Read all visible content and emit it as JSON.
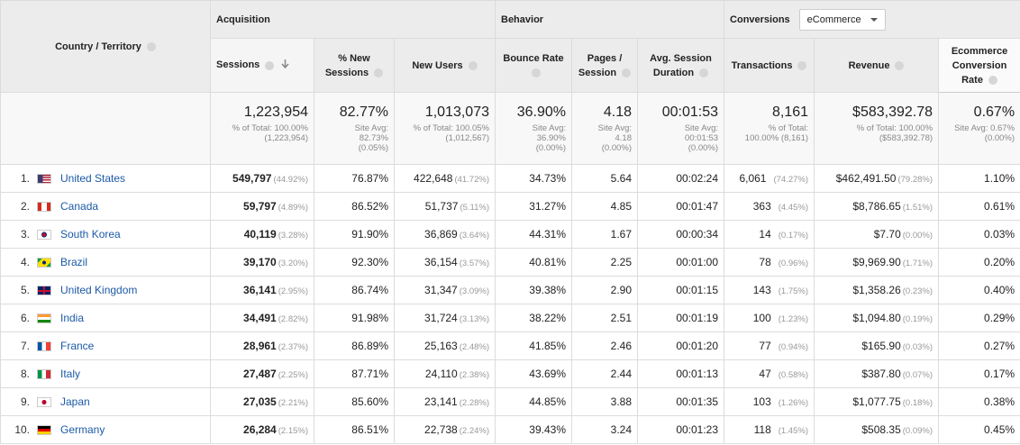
{
  "header": {
    "dimension": "Country / Territory",
    "groups": [
      {
        "label": "Acquisition"
      },
      {
        "label": "Behavior"
      },
      {
        "label": "Conversions",
        "select": "eCommerce"
      }
    ]
  },
  "columns": [
    "Sessions",
    "% New Sessions",
    "New Users",
    "Bounce Rate",
    "Pages / Session",
    "Avg. Session Duration",
    "Transactions",
    "Revenue",
    "Ecommerce Conversion Rate"
  ],
  "totals": [
    {
      "value": "1,223,954",
      "sub": [
        "% of Total: 100.00%",
        "(1,223,954)"
      ]
    },
    {
      "value": "82.77%",
      "sub": [
        "Site Avg:",
        "82.73%",
        "(0.05%)"
      ]
    },
    {
      "value": "1,013,073",
      "sub": [
        "% of Total: 100.05%",
        "(1,012,567)"
      ]
    },
    {
      "value": "36.90%",
      "sub": [
        "Site Avg:",
        "36.90%",
        "(0.00%)"
      ]
    },
    {
      "value": "4.18",
      "sub": [
        "Site Avg:",
        "4.18",
        "(0.00%)"
      ]
    },
    {
      "value": "00:01:53",
      "sub": [
        "Site Avg:",
        "00:01:53",
        "(0.00%)"
      ]
    },
    {
      "value": "8,161",
      "sub": [
        "% of Total:",
        "100.00% (8,161)"
      ]
    },
    {
      "value": "$583,392.78",
      "sub": [
        "% of Total: 100.00%",
        "($583,392.78)"
      ]
    },
    {
      "value": "0.67%",
      "sub": [
        "Site Avg: 0.67%",
        "(0.00%)"
      ]
    }
  ],
  "rows": [
    {
      "rank": "1.",
      "country": "United States",
      "cells": [
        [
          "549,797",
          "(44.92%)"
        ],
        [
          "76.87%"
        ],
        [
          "422,648",
          "(41.72%)"
        ],
        [
          "34.73%"
        ],
        [
          "5.64"
        ],
        [
          "00:02:24"
        ],
        [
          "6,061",
          "(74.27%)"
        ],
        [
          "$462,491.50",
          "(79.28%)"
        ],
        [
          "1.10%"
        ]
      ]
    },
    {
      "rank": "2.",
      "country": "Canada",
      "cells": [
        [
          "59,797",
          "(4.89%)"
        ],
        [
          "86.52%"
        ],
        [
          "51,737",
          "(5.11%)"
        ],
        [
          "31.27%"
        ],
        [
          "4.85"
        ],
        [
          "00:01:47"
        ],
        [
          "363",
          "(4.45%)"
        ],
        [
          "$8,786.65",
          "(1.51%)"
        ],
        [
          "0.61%"
        ]
      ]
    },
    {
      "rank": "3.",
      "country": "South Korea",
      "cells": [
        [
          "40,119",
          "(3.28%)"
        ],
        [
          "91.90%"
        ],
        [
          "36,869",
          "(3.64%)"
        ],
        [
          "44.31%"
        ],
        [
          "1.67"
        ],
        [
          "00:00:34"
        ],
        [
          "14",
          "(0.17%)"
        ],
        [
          "$7.70",
          "(0.00%)"
        ],
        [
          "0.03%"
        ]
      ]
    },
    {
      "rank": "4.",
      "country": "Brazil",
      "cells": [
        [
          "39,170",
          "(3.20%)"
        ],
        [
          "92.30%"
        ],
        [
          "36,154",
          "(3.57%)"
        ],
        [
          "40.81%"
        ],
        [
          "2.25"
        ],
        [
          "00:01:00"
        ],
        [
          "78",
          "(0.96%)"
        ],
        [
          "$9,969.90",
          "(1.71%)"
        ],
        [
          "0.20%"
        ]
      ]
    },
    {
      "rank": "5.",
      "country": "United Kingdom",
      "cells": [
        [
          "36,141",
          "(2.95%)"
        ],
        [
          "86.74%"
        ],
        [
          "31,347",
          "(3.09%)"
        ],
        [
          "39.38%"
        ],
        [
          "2.90"
        ],
        [
          "00:01:15"
        ],
        [
          "143",
          "(1.75%)"
        ],
        [
          "$1,358.26",
          "(0.23%)"
        ],
        [
          "0.40%"
        ]
      ]
    },
    {
      "rank": "6.",
      "country": "India",
      "cells": [
        [
          "34,491",
          "(2.82%)"
        ],
        [
          "91.98%"
        ],
        [
          "31,724",
          "(3.13%)"
        ],
        [
          "38.22%"
        ],
        [
          "2.51"
        ],
        [
          "00:01:19"
        ],
        [
          "100",
          "(1.23%)"
        ],
        [
          "$1,094.80",
          "(0.19%)"
        ],
        [
          "0.29%"
        ]
      ]
    },
    {
      "rank": "7.",
      "country": "France",
      "cells": [
        [
          "28,961",
          "(2.37%)"
        ],
        [
          "86.89%"
        ],
        [
          "25,163",
          "(2.48%)"
        ],
        [
          "41.85%"
        ],
        [
          "2.46"
        ],
        [
          "00:01:20"
        ],
        [
          "77",
          "(0.94%)"
        ],
        [
          "$165.90",
          "(0.03%)"
        ],
        [
          "0.27%"
        ]
      ]
    },
    {
      "rank": "8.",
      "country": "Italy",
      "cells": [
        [
          "27,487",
          "(2.25%)"
        ],
        [
          "87.71%"
        ],
        [
          "24,110",
          "(2.38%)"
        ],
        [
          "43.69%"
        ],
        [
          "2.44"
        ],
        [
          "00:01:13"
        ],
        [
          "47",
          "(0.58%)"
        ],
        [
          "$387.80",
          "(0.07%)"
        ],
        [
          "0.17%"
        ]
      ]
    },
    {
      "rank": "9.",
      "country": "Japan",
      "cells": [
        [
          "27,035",
          "(2.21%)"
        ],
        [
          "85.60%"
        ],
        [
          "23,141",
          "(2.28%)"
        ],
        [
          "44.85%"
        ],
        [
          "3.88"
        ],
        [
          "00:01:35"
        ],
        [
          "103",
          "(1.26%)"
        ],
        [
          "$1,077.75",
          "(0.18%)"
        ],
        [
          "0.38%"
        ]
      ]
    },
    {
      "rank": "10.",
      "country": "Germany",
      "cells": [
        [
          "26,284",
          "(2.15%)"
        ],
        [
          "86.51%"
        ],
        [
          "22,738",
          "(2.24%)"
        ],
        [
          "39.43%"
        ],
        [
          "3.24"
        ],
        [
          "00:01:23"
        ],
        [
          "118",
          "(1.45%)"
        ],
        [
          "$508.35",
          "(0.09%)"
        ],
        [
          "0.45%"
        ]
      ]
    }
  ]
}
